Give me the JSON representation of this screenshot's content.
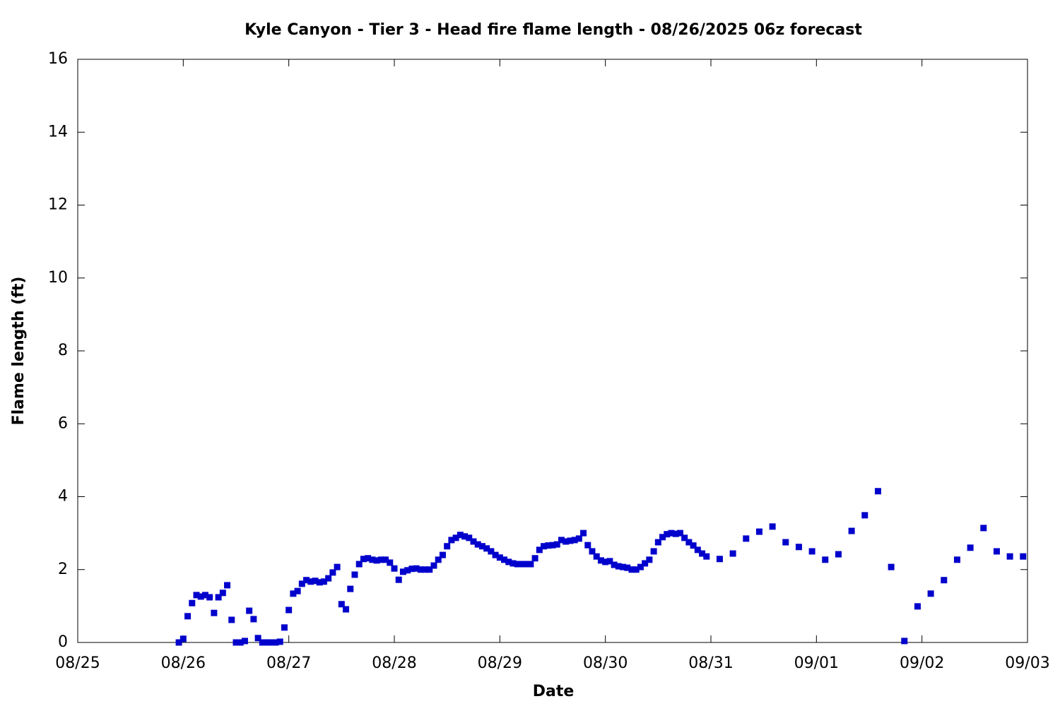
{
  "chart_data": {
    "type": "scatter",
    "title": "Kyle Canyon - Tier 3 - Head fire flame length - 08/26/2025 06z forecast",
    "xlabel": "Date",
    "ylabel": "Flame length (ft)",
    "color": "#0000cc",
    "xlim": [
      0,
      216
    ],
    "xticks": [
      {
        "value": 0,
        "label": "08/25"
      },
      {
        "value": 24,
        "label": "08/26"
      },
      {
        "value": 48,
        "label": "08/27"
      },
      {
        "value": 72,
        "label": "08/28"
      },
      {
        "value": 96,
        "label": "08/29"
      },
      {
        "value": 120,
        "label": "08/30"
      },
      {
        "value": 144,
        "label": "08/31"
      },
      {
        "value": 168,
        "label": "09/01"
      },
      {
        "value": 192,
        "label": "09/02"
      },
      {
        "value": 216,
        "label": "09/03"
      }
    ],
    "ylim": [
      0,
      16
    ],
    "yticks": [
      0,
      2,
      4,
      6,
      8,
      10,
      12,
      14,
      16
    ],
    "x": [
      23,
      24,
      25,
      26,
      27,
      28,
      29,
      30,
      31,
      32,
      33,
      34,
      35,
      36,
      37,
      38,
      39,
      40,
      41,
      42,
      43,
      44,
      45,
      46,
      47,
      48,
      49,
      50,
      51,
      52,
      53,
      54,
      55,
      56,
      57,
      58,
      59,
      60,
      61,
      62,
      63,
      64,
      65,
      66,
      67,
      68,
      69,
      70,
      71,
      72,
      73,
      74,
      75,
      76,
      77,
      78,
      79,
      80,
      81,
      82,
      83,
      84,
      85,
      86,
      87,
      88,
      89,
      90,
      91,
      92,
      93,
      94,
      95,
      96,
      97,
      98,
      99,
      100,
      101,
      102,
      103,
      104,
      105,
      106,
      107,
      108,
      109,
      110,
      111,
      112,
      113,
      114,
      115,
      116,
      117,
      118,
      119,
      120,
      121,
      122,
      123,
      124,
      125,
      126,
      127,
      128,
      129,
      130,
      131,
      132,
      133,
      134,
      135,
      136,
      137,
      138,
      139,
      140,
      141,
      142,
      143,
      146,
      149,
      152,
      155,
      158,
      161,
      164,
      167,
      170,
      173,
      176,
      179,
      182,
      185,
      188,
      191,
      194,
      197,
      200,
      203,
      206,
      209,
      212,
      215
    ],
    "values": [
      0,
      0.1,
      0.72,
      1.08,
      1.3,
      1.26,
      1.3,
      1.24,
      0.81,
      1.24,
      1.36,
      1.57,
      0.62,
      0,
      0,
      0.04,
      0.87,
      0.64,
      0.12,
      0,
      0,
      0,
      0,
      0.02,
      0.41,
      0.89,
      1.34,
      1.41,
      1.61,
      1.71,
      1.67,
      1.69,
      1.65,
      1.67,
      1.76,
      1.92,
      2.07,
      1.05,
      0.91,
      1.47,
      1.86,
      2.15,
      2.29,
      2.31,
      2.27,
      2.25,
      2.27,
      2.27,
      2.19,
      2.03,
      1.72,
      1.94,
      1.98,
      2.02,
      2.03,
      2.0,
      2.0,
      2.0,
      2.11,
      2.27,
      2.4,
      2.64,
      2.81,
      2.87,
      2.95,
      2.91,
      2.87,
      2.77,
      2.69,
      2.64,
      2.58,
      2.5,
      2.4,
      2.33,
      2.27,
      2.21,
      2.17,
      2.15,
      2.15,
      2.15,
      2.15,
      2.31,
      2.54,
      2.64,
      2.66,
      2.67,
      2.69,
      2.81,
      2.77,
      2.79,
      2.81,
      2.85,
      3.0,
      2.67,
      2.5,
      2.36,
      2.25,
      2.21,
      2.23,
      2.13,
      2.09,
      2.07,
      2.05,
      2.0,
      2.0,
      2.07,
      2.17,
      2.27,
      2.5,
      2.75,
      2.89,
      2.97,
      3.0,
      2.98,
      3.0,
      2.87,
      2.75,
      2.66,
      2.54,
      2.44,
      2.36,
      2.29,
      2.44,
      2.85,
      3.04,
      3.18,
      2.75,
      2.62,
      2.5,
      2.27,
      2.42,
      3.06,
      3.49,
      4.15,
      2.07,
      0.04,
      0.99,
      1.34,
      1.71,
      2.27,
      2.6,
      3.14,
      2.5,
      2.36,
      2.36
    ]
  }
}
